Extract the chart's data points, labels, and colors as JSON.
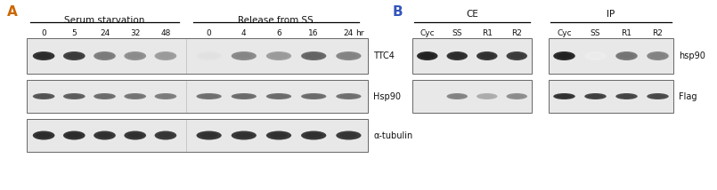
{
  "panel_A_label": "A",
  "panel_B_label": "B",
  "panel_A_label_color": "#cc6600",
  "panel_B_label_color": "#3355bb",
  "group1_label": "Serum starvation",
  "group2_label": "Release from SS",
  "ss_timepoints": [
    "0",
    "5",
    "24",
    "32",
    "48"
  ],
  "release_timepoints": [
    "0",
    "4",
    "6",
    "16",
    "24"
  ],
  "hr_label": "hr",
  "blot_labels_A": [
    "TTC4",
    "Hsp90",
    "α-tubulin"
  ],
  "CE_label": "CE",
  "IP_label": "IP",
  "CE_conditions": [
    "Cyc",
    "SS",
    "R1",
    "R2"
  ],
  "IP_conditions": [
    "Cyc",
    "SS",
    "R1",
    "R2"
  ],
  "blot_labels_B": [
    "hsp90",
    "Flag"
  ],
  "bg_color": "#ffffff",
  "text_color": "#111111",
  "blot_bg_light": "#ebebeb",
  "blot_border": "#666666",
  "ttc4_ss_intensities": [
    0.88,
    0.82,
    0.55,
    0.48,
    0.42
  ],
  "ttc4_rel_intensities": [
    0.12,
    0.5,
    0.42,
    0.65,
    0.52
  ],
  "hsp90_ss_intensities": [
    0.72,
    0.68,
    0.62,
    0.58,
    0.55
  ],
  "hsp90_rel_intensities": [
    0.6,
    0.62,
    0.62,
    0.62,
    0.6
  ],
  "tub_ss_intensities": [
    0.88,
    0.88,
    0.86,
    0.86,
    0.84
  ],
  "tub_rel_intensities": [
    0.86,
    0.86,
    0.86,
    0.86,
    0.84
  ],
  "ce_hsp90_intensities": [
    0.92,
    0.88,
    0.86,
    0.82
  ],
  "ip_hsp90_intensities": [
    0.92,
    0.08,
    0.58,
    0.52
  ],
  "ce_flag_intensities": [
    0.0,
    0.52,
    0.35,
    0.48
  ],
  "ip_flag_intensities": [
    0.86,
    0.8,
    0.78,
    0.76
  ]
}
